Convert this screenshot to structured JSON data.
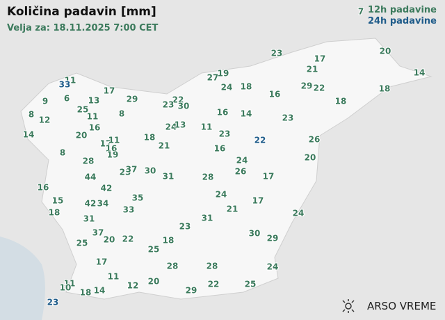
{
  "header": {
    "title": "Količina padavin [mm]",
    "subtitle": "Velja za: 18.11.2025 7:00 CET"
  },
  "legend": [
    {
      "label": "12h padavine",
      "color": "#3b7a5c"
    },
    {
      "label": "24h padavine",
      "color": "#1f5c8a"
    }
  ],
  "stations_12h": [
    7,
    11,
    17,
    29,
    9,
    6,
    13,
    22,
    23,
    30,
    25,
    8,
    12,
    11,
    8,
    27,
    19,
    24,
    18,
    23,
    17,
    21,
    20,
    14,
    29,
    22,
    18,
    16,
    18,
    16,
    14,
    23,
    24,
    13,
    11,
    16,
    14,
    20,
    18,
    23,
    21,
    17,
    11,
    16,
    19,
    8,
    16,
    26,
    28,
    24,
    20,
    23,
    37,
    30,
    31,
    28,
    26,
    17,
    44,
    16,
    42,
    15,
    35,
    24,
    42,
    34,
    33,
    21,
    17,
    18,
    31,
    31,
    24,
    23,
    37,
    20,
    22,
    30,
    25,
    18,
    29,
    25,
    17,
    28,
    28,
    24,
    11,
    11,
    10,
    12,
    20,
    25,
    22,
    18,
    14,
    29
  ],
  "stations_24h": [
    33,
    22,
    23
  ],
  "footer": {
    "logo": "ARSO VREME"
  }
}
